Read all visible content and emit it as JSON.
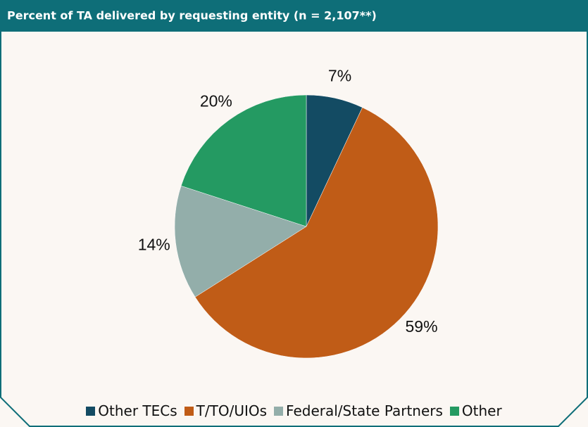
{
  "chart_data": {
    "type": "pie",
    "title": "Percent of TA delivered by requesting entity (n = 2,107**)",
    "categories": [
      "Other TECs",
      "T/TO/UIOs",
      "Federal/State Partners",
      "Other"
    ],
    "values": [
      7,
      59,
      14,
      20
    ],
    "value_labels": [
      "7%",
      "59%",
      "14%",
      "20%"
    ],
    "colors": [
      "#134b63",
      "#c05c17",
      "#93aeaa",
      "#249a62"
    ],
    "legend": "bottom"
  }
}
